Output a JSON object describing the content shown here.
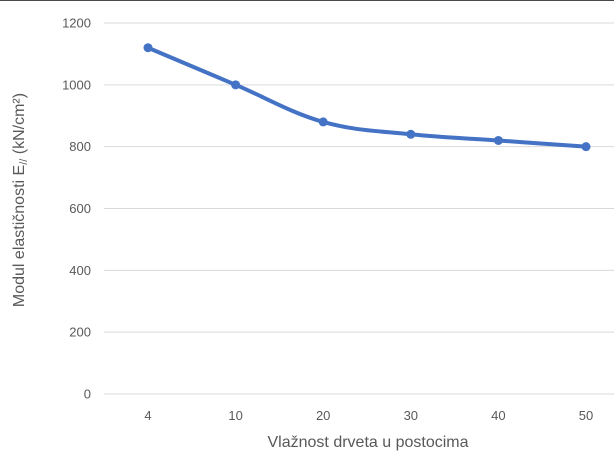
{
  "chart_data": {
    "type": "line",
    "title": "",
    "xlabel": "Vlažnost drveta u postocima",
    "ylabel_main": "Modul elastičnosti E",
    "ylabel_sub": "//",
    "ylabel_unit": " (kN/cm²)",
    "categories": [
      "4",
      "10",
      "20",
      "30",
      "40",
      "50"
    ],
    "series": [
      {
        "values": [
          1120,
          1000,
          880,
          840,
          820,
          800
        ]
      }
    ],
    "yticks": [
      "0",
      "200",
      "400",
      "600",
      "800",
      "1000",
      "1200"
    ],
    "ylim": [
      0,
      1200
    ],
    "grid": true,
    "legend": "none",
    "colors": {
      "line": "#4472C4",
      "grid": "#D9D9D9",
      "text": "#595959"
    }
  }
}
